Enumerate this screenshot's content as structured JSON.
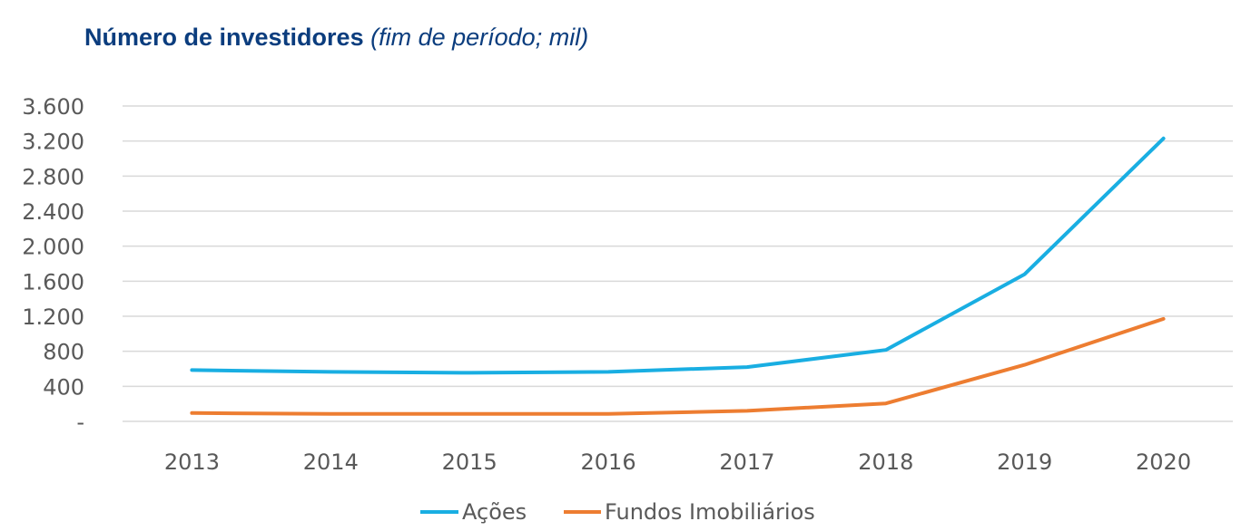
{
  "title": {
    "main": "Número de investidores",
    "sub": "(fim de período; mil)"
  },
  "chart_data": {
    "type": "line",
    "x": [
      "2013",
      "2014",
      "2015",
      "2016",
      "2017",
      "2018",
      "2019",
      "2020"
    ],
    "series": [
      {
        "name": "Ações",
        "color": "#19aee2",
        "values": [
          585,
          565,
          555,
          565,
          620,
          815,
          1680,
          3230
        ]
      },
      {
        "name": "Fundos Imobiliários",
        "color": "#ed7d31",
        "values": [
          95,
          85,
          85,
          85,
          120,
          205,
          645,
          1170
        ]
      }
    ],
    "ylim": [
      0,
      3600
    ],
    "yticks": [
      {
        "value": 0,
        "label": "-"
      },
      {
        "value": 400,
        "label": "400"
      },
      {
        "value": 800,
        "label": "800"
      },
      {
        "value": 1200,
        "label": "1.200"
      },
      {
        "value": 1600,
        "label": "1.600"
      },
      {
        "value": 2000,
        "label": "2.000"
      },
      {
        "value": 2400,
        "label": "2.400"
      },
      {
        "value": 2800,
        "label": "2.800"
      },
      {
        "value": 3200,
        "label": "3.200"
      },
      {
        "value": 3600,
        "label": "3.600"
      }
    ],
    "grid": true,
    "legend": "bottom"
  }
}
